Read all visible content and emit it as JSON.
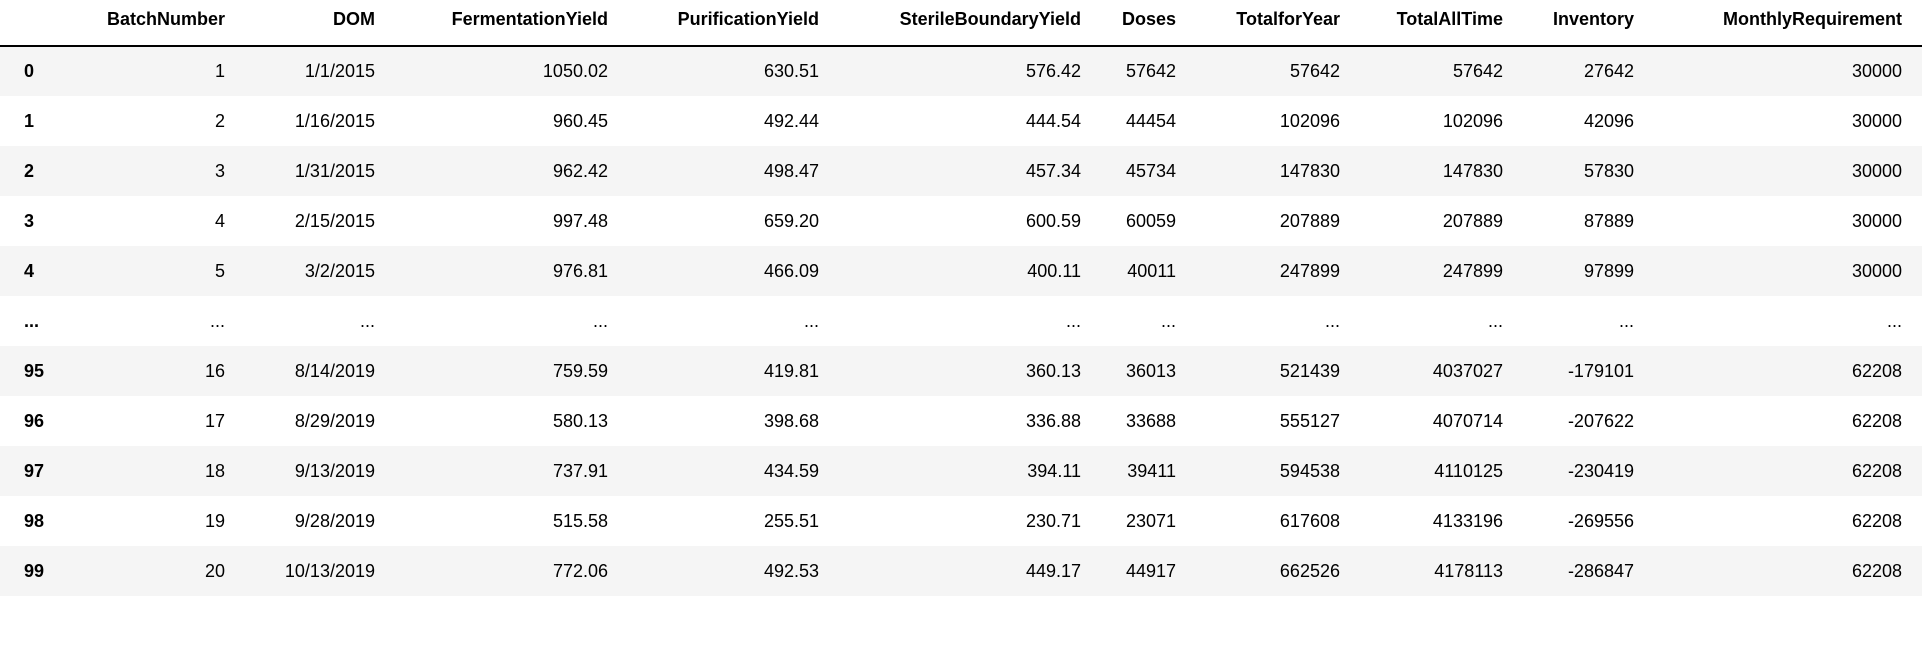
{
  "table": {
    "index_header": "",
    "columns": [
      "BatchNumber",
      "DOM",
      "FermentationYield",
      "PurificationYield",
      "SterileBoundaryYield",
      "Doses",
      "TotalforYear",
      "TotalAllTime",
      "Inventory",
      "MonthlyRequirement"
    ],
    "rows": [
      {
        "index": "0",
        "cells": [
          "1",
          "1/1/2015",
          "1050.02",
          "630.51",
          "576.42",
          "57642",
          "57642",
          "57642",
          "27642",
          "30000"
        ]
      },
      {
        "index": "1",
        "cells": [
          "2",
          "1/16/2015",
          "960.45",
          "492.44",
          "444.54",
          "44454",
          "102096",
          "102096",
          "42096",
          "30000"
        ]
      },
      {
        "index": "2",
        "cells": [
          "3",
          "1/31/2015",
          "962.42",
          "498.47",
          "457.34",
          "45734",
          "147830",
          "147830",
          "57830",
          "30000"
        ]
      },
      {
        "index": "3",
        "cells": [
          "4",
          "2/15/2015",
          "997.48",
          "659.20",
          "600.59",
          "60059",
          "207889",
          "207889",
          "87889",
          "30000"
        ]
      },
      {
        "index": "4",
        "cells": [
          "5",
          "3/2/2015",
          "976.81",
          "466.09",
          "400.11",
          "40011",
          "247899",
          "247899",
          "97899",
          "30000"
        ]
      },
      {
        "index": "...",
        "cells": [
          "...",
          "...",
          "...",
          "...",
          "...",
          "...",
          "...",
          "...",
          "...",
          "..."
        ]
      },
      {
        "index": "95",
        "cells": [
          "16",
          "8/14/2019",
          "759.59",
          "419.81",
          "360.13",
          "36013",
          "521439",
          "4037027",
          "-179101",
          "62208"
        ]
      },
      {
        "index": "96",
        "cells": [
          "17",
          "8/29/2019",
          "580.13",
          "398.68",
          "336.88",
          "33688",
          "555127",
          "4070714",
          "-207622",
          "62208"
        ]
      },
      {
        "index": "97",
        "cells": [
          "18",
          "9/13/2019",
          "737.91",
          "434.59",
          "394.11",
          "39411",
          "594538",
          "4110125",
          "-230419",
          "62208"
        ]
      },
      {
        "index": "98",
        "cells": [
          "19",
          "9/28/2019",
          "515.58",
          "255.51",
          "230.71",
          "23071",
          "617608",
          "4133196",
          "-269556",
          "62208"
        ]
      },
      {
        "index": "99",
        "cells": [
          "20",
          "10/13/2019",
          "772.06",
          "492.53",
          "449.17",
          "44917",
          "662526",
          "4178113",
          "-286847",
          "62208"
        ]
      }
    ],
    "colors": {
      "background": "#ffffff",
      "stripe": "#f5f5f5",
      "text": "#000000",
      "header_border": "#000000"
    }
  },
  "chart_data": {
    "type": "table",
    "title": "",
    "columns": [
      "BatchNumber",
      "DOM",
      "FermentationYield",
      "PurificationYield",
      "SterileBoundaryYield",
      "Doses",
      "TotalforYear",
      "TotalAllTime",
      "Inventory",
      "MonthlyRequirement"
    ],
    "row_indices": [
      "0",
      "1",
      "2",
      "3",
      "4",
      "...",
      "95",
      "96",
      "97",
      "98",
      "99"
    ]
  }
}
